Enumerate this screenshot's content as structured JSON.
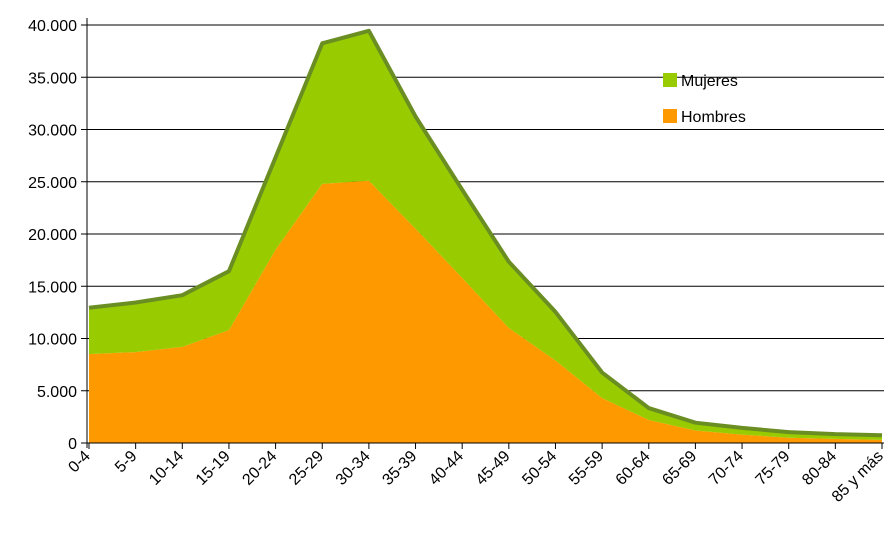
{
  "chart_data": {
    "type": "area",
    "stacked": true,
    "categories": [
      "0-4",
      "5-9",
      "10-14",
      "15-19",
      "20-24",
      "25-29",
      "30-34",
      "35-39",
      "40-44",
      "45-49",
      "50-54",
      "55-59",
      "60-64",
      "65-69",
      "70-74",
      "75-79",
      "80-84",
      "85 y más"
    ],
    "series": [
      {
        "name": "Hombres",
        "color": "#ff9900",
        "values": [
          8500,
          8700,
          9200,
          10800,
          18500,
          24800,
          25100,
          20500,
          15800,
          11000,
          7900,
          4300,
          2200,
          1200,
          800,
          500,
          400,
          300
        ]
      },
      {
        "name": "Mujeres",
        "color": "#99cc00",
        "values": [
          4300,
          4600,
          4800,
          5500,
          8700,
          13300,
          14200,
          10600,
          8300,
          6200,
          4500,
          2300,
          1000,
          600,
          500,
          400,
          300,
          300
        ]
      }
    ],
    "ylim": [
      0,
      40000
    ],
    "yticks": [
      {
        "value": 0,
        "label": "0"
      },
      {
        "value": 5000,
        "label": "5.000"
      },
      {
        "value": 10000,
        "label": "10.000"
      },
      {
        "value": 15000,
        "label": "15.000"
      },
      {
        "value": 20000,
        "label": "20.000"
      },
      {
        "value": 25000,
        "label": "25.000"
      },
      {
        "value": 30000,
        "label": "30.000"
      },
      {
        "value": 35000,
        "label": "35.000"
      },
      {
        "value": 40000,
        "label": "40.000"
      }
    ],
    "grid": true,
    "legend": {
      "placement": "top-right",
      "items": [
        {
          "label": "Mujeres",
          "color": "#99cc00"
        },
        {
          "label": "Hombres",
          "color": "#ff9900"
        }
      ]
    },
    "edge_color": "#6b8e23"
  }
}
